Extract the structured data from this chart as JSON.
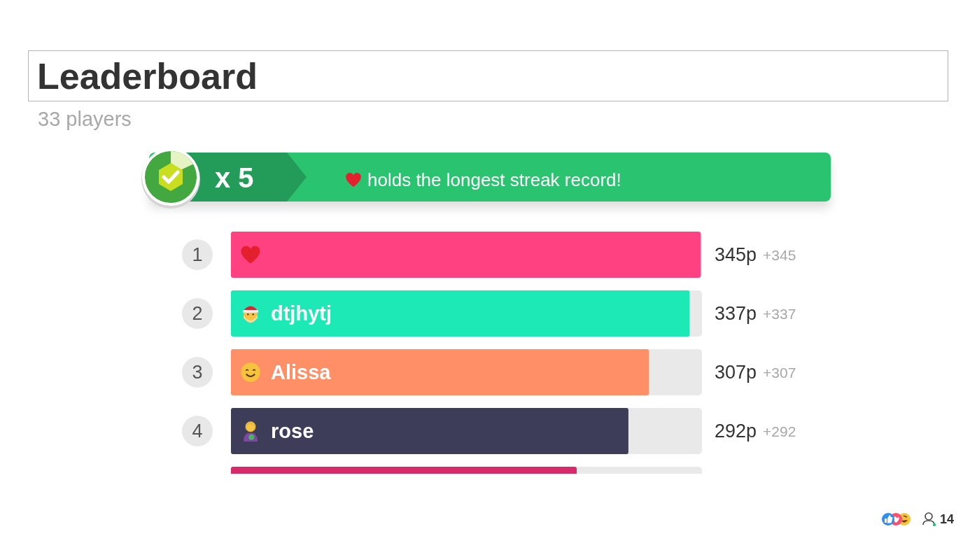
{
  "chart_data": {
    "type": "bar",
    "orientation": "horizontal",
    "title": "Leaderboard",
    "subtitle": "33 players",
    "categories": [
      null,
      "dtjhytj",
      "Alissa",
      "rose",
      null
    ],
    "values": [
      345,
      337,
      307,
      292,
      254
    ],
    "colors": [
      "#ff4081",
      "#1de9b6",
      "#ff8f66",
      "#3d3d5a",
      "#d62a6a"
    ],
    "value_labels": [
      "345p +345",
      "337p +337",
      "307p +307",
      "292p +292",
      null
    ],
    "annotations": [
      "x 5",
      "holds the longest streak record!",
      "1",
      "2",
      "3",
      "4",
      "14"
    ]
  }
}
